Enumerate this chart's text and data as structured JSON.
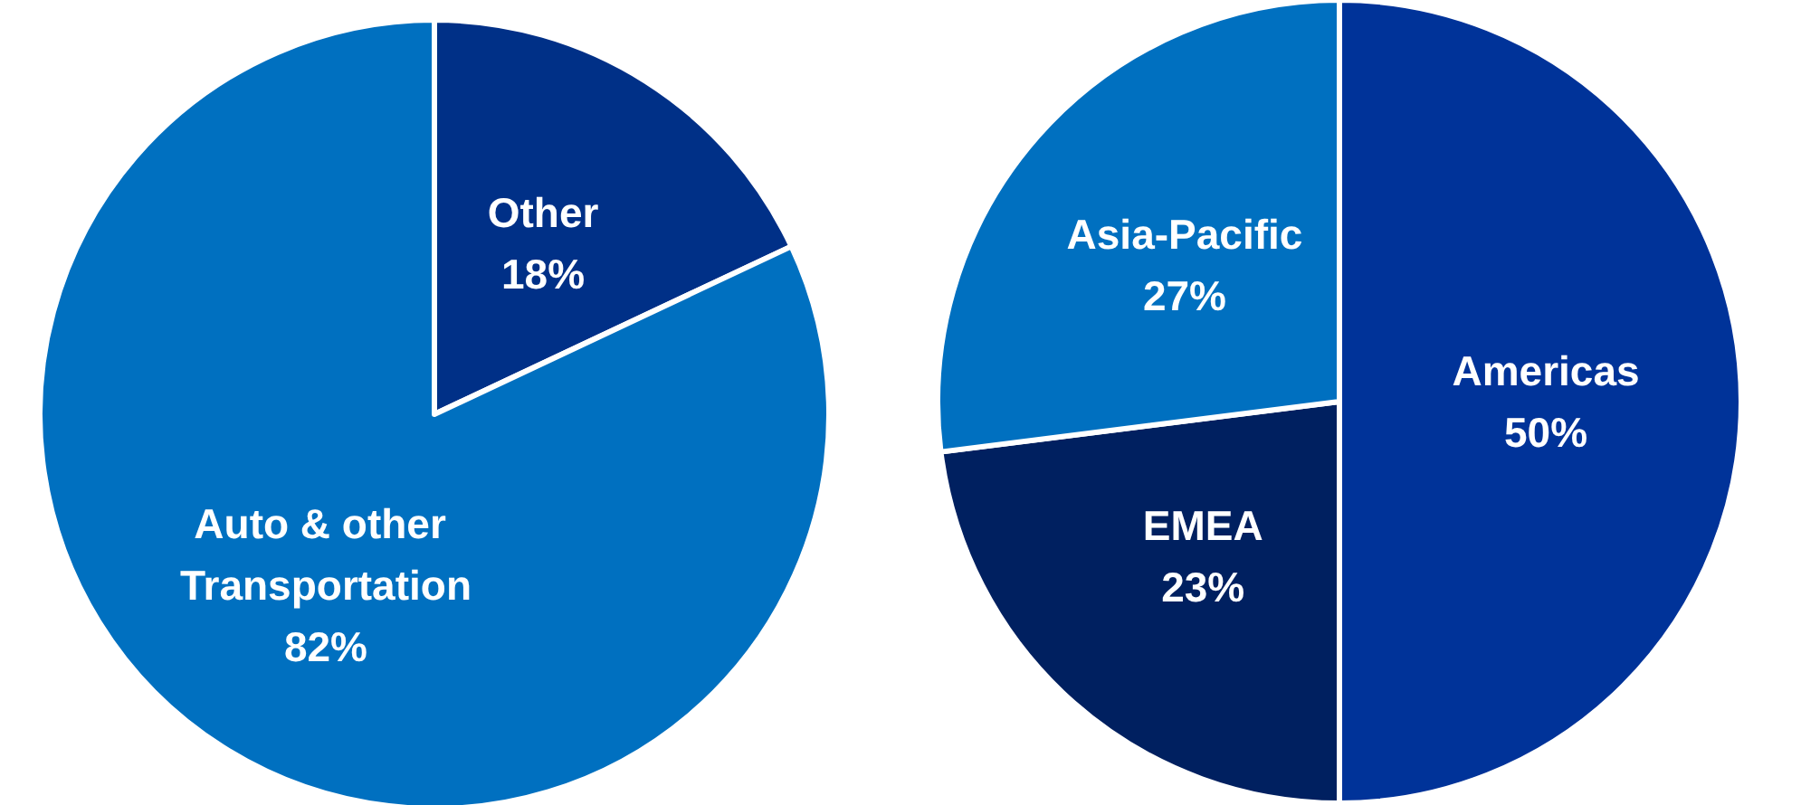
{
  "chart_data": [
    {
      "type": "pie",
      "categories": [
        "Other",
        "Auto & other Transportation"
      ],
      "values": [
        18,
        82
      ],
      "colors": [
        "#003087",
        "#0070c0"
      ],
      "value_labels": [
        "18%",
        "82%"
      ]
    },
    {
      "type": "pie",
      "categories": [
        "Americas",
        "EMEA",
        "Asia-Pacific"
      ],
      "values": [
        50,
        23,
        27
      ],
      "colors": [
        "#003399",
        "#002060",
        "#0070c0"
      ],
      "value_labels": [
        "50%",
        "23%",
        "27%"
      ]
    }
  ]
}
